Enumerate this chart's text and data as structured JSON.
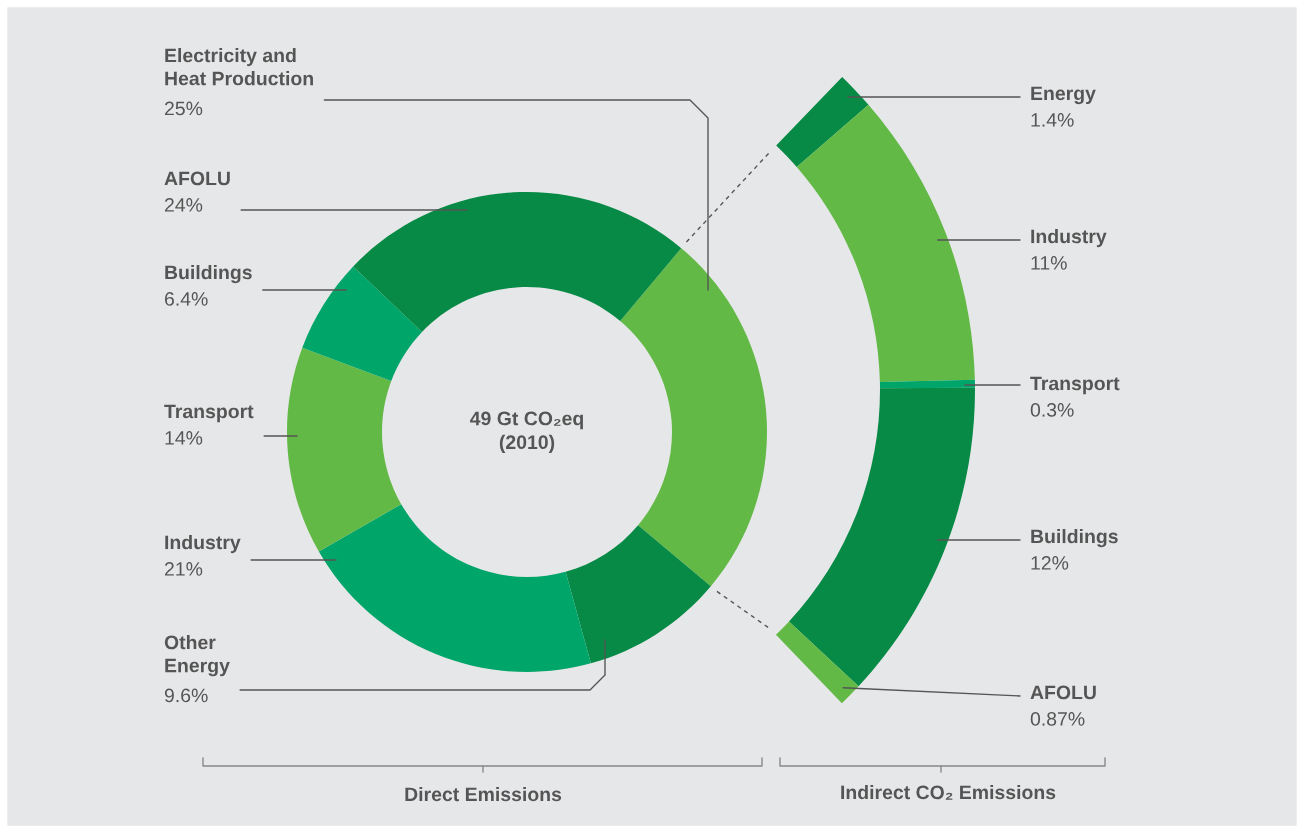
{
  "chart_data": [
    {
      "type": "donut",
      "xlabel": "Direct Emissions",
      "annotations": [
        "49 Gt CO₂eq\n(2010)"
      ],
      "categories": [
        "Electricity and\nHeat Production",
        "Other\nEnergy",
        "Industry",
        "Transport",
        "Buildings",
        "AFOLU"
      ],
      "values": [
        25,
        9.6,
        21,
        14,
        6.4,
        24
      ],
      "value_labels": [
        "25%",
        "9.6%",
        "21%",
        "14%",
        "6.4%",
        "24%"
      ],
      "colors": [
        "#62b946",
        "#068a45",
        "#00a56a",
        "#62b946",
        "#00a56a",
        "#068a45"
      ]
    },
    {
      "type": "donut",
      "xlabel": "Indirect CO₂ Emissions",
      "categories": [
        "Energy",
        "Industry",
        "Transport",
        "Buildings",
        "AFOLU"
      ],
      "values": [
        1.4,
        11,
        0.3,
        12,
        0.87
      ],
      "value_labels": [
        "1.4%",
        "11%",
        "0.3%",
        "12%",
        "0.87%"
      ],
      "colors": [
        "#068a45",
        "#62b946",
        "#00a56a",
        "#068a45",
        "#62b946"
      ]
    }
  ]
}
